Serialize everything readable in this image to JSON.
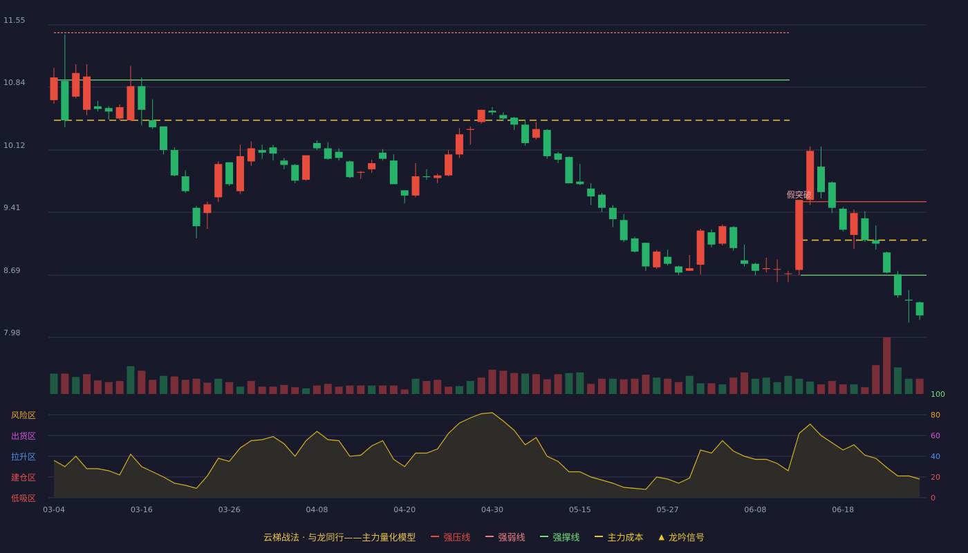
{
  "chart_data": {
    "type": "candlestick",
    "title": "",
    "x_ticks": [
      "03-04",
      "03-16",
      "03-26",
      "04-08",
      "04-20",
      "04-30",
      "05-15",
      "05-27",
      "06-08",
      "06-18"
    ],
    "y_ticks": [
      "11.55",
      "10.84",
      "10.12",
      "9.41",
      "8.69",
      "7.98"
    ],
    "ylim": [
      7.98,
      11.55
    ],
    "up_color": "#e74c3c",
    "down_color": "#27b36a",
    "candles": [
      [
        10.69,
        10.95,
        10.65,
        11.06
      ],
      [
        10.91,
        10.46,
        10.38,
        11.44
      ],
      [
        10.73,
        11.0,
        10.71,
        11.1
      ],
      [
        10.58,
        10.96,
        10.52,
        11.1
      ],
      [
        10.62,
        10.59,
        10.56,
        10.68
      ],
      [
        10.6,
        10.56,
        10.47,
        10.62
      ],
      [
        10.48,
        10.61,
        10.46,
        10.64
      ],
      [
        10.46,
        10.85,
        10.45,
        11.08
      ],
      [
        10.85,
        10.58,
        10.4,
        10.95
      ],
      [
        10.46,
        10.38,
        10.36,
        10.7
      ],
      [
        10.39,
        10.12,
        10.07,
        10.39
      ],
      [
        10.12,
        9.83,
        9.82,
        10.15
      ],
      [
        9.82,
        9.65,
        9.63,
        9.89
      ],
      [
        9.46,
        9.25,
        9.11,
        9.48
      ],
      [
        9.4,
        9.5,
        9.22,
        9.53
      ],
      [
        9.58,
        9.96,
        9.53,
        9.99
      ],
      [
        9.98,
        9.73,
        9.71,
        9.98
      ],
      [
        9.65,
        10.05,
        9.62,
        10.18
      ],
      [
        9.99,
        10.14,
        9.94,
        10.22
      ],
      [
        10.12,
        10.09,
        10.02,
        10.18
      ],
      [
        10.15,
        10.08,
        10.0,
        10.18
      ],
      [
        10.0,
        9.95,
        9.9,
        10.03
      ],
      [
        9.95,
        9.77,
        9.74,
        9.96
      ],
      [
        9.78,
        10.06,
        9.77,
        10.06
      ],
      [
        10.2,
        10.14,
        10.12,
        10.23
      ],
      [
        10.14,
        10.02,
        10.01,
        10.21
      ],
      [
        10.1,
        10.03,
        10.0,
        10.14
      ],
      [
        9.99,
        9.81,
        9.8,
        10.0
      ],
      [
        9.86,
        9.87,
        9.79,
        9.88
      ],
      [
        9.9,
        9.97,
        9.86,
        10.01
      ],
      [
        10.09,
        10.02,
        10.0,
        10.13
      ],
      [
        10.0,
        9.73,
        9.73,
        10.07
      ],
      [
        9.66,
        9.6,
        9.51,
        9.66
      ],
      [
        9.6,
        9.82,
        9.58,
        9.97
      ],
      [
        9.82,
        9.81,
        9.78,
        9.9
      ],
      [
        9.8,
        9.83,
        9.74,
        9.85
      ],
      [
        9.83,
        10.07,
        9.82,
        10.12
      ],
      [
        10.07,
        10.3,
        10.03,
        10.37
      ],
      [
        10.35,
        10.36,
        10.18,
        10.39
      ],
      [
        10.44,
        10.58,
        10.42,
        10.58
      ],
      [
        10.57,
        10.55,
        10.52,
        10.61
      ],
      [
        10.52,
        10.48,
        10.45,
        10.55
      ],
      [
        10.49,
        10.41,
        10.35,
        10.5
      ],
      [
        10.41,
        10.2,
        10.17,
        10.46
      ],
      [
        10.26,
        10.36,
        10.24,
        10.44
      ],
      [
        10.35,
        10.05,
        10.02,
        10.36
      ],
      [
        10.08,
        10.01,
        9.97,
        10.1
      ],
      [
        10.04,
        9.74,
        9.74,
        10.05
      ],
      [
        9.76,
        9.73,
        9.72,
        9.96
      ],
      [
        9.68,
        9.59,
        9.49,
        9.74
      ],
      [
        9.61,
        9.46,
        9.41,
        9.63
      ],
      [
        9.46,
        9.33,
        9.24,
        9.49
      ],
      [
        9.32,
        9.09,
        9.07,
        9.39
      ],
      [
        9.11,
        8.96,
        8.95,
        9.13
      ],
      [
        9.06,
        8.79,
        8.74,
        9.06
      ],
      [
        8.78,
        8.96,
        8.76,
        8.98
      ],
      [
        8.9,
        8.82,
        8.8,
        8.98
      ],
      [
        8.79,
        8.72,
        8.69,
        8.8
      ],
      [
        8.74,
        8.77,
        8.74,
        8.92
      ],
      [
        8.81,
        9.2,
        8.7,
        9.22
      ],
      [
        9.18,
        9.04,
        9.01,
        9.21
      ],
      [
        9.05,
        9.25,
        9.03,
        9.27
      ],
      [
        9.24,
        9.0,
        8.97,
        9.25
      ],
      [
        8.86,
        8.82,
        8.79,
        9.04
      ],
      [
        8.82,
        8.74,
        8.69,
        8.83
      ],
      [
        8.76,
        8.77,
        8.72,
        8.89
      ],
      [
        8.76,
        8.76,
        8.61,
        8.87
      ],
      [
        8.71,
        8.71,
        8.61,
        8.74
      ],
      [
        8.75,
        9.55,
        8.69,
        9.55
      ],
      [
        9.55,
        10.11,
        9.49,
        10.16
      ],
      [
        9.93,
        9.64,
        9.57,
        10.16
      ],
      [
        9.75,
        9.46,
        9.4,
        9.76
      ],
      [
        9.45,
        9.21,
        9.19,
        9.47
      ],
      [
        9.15,
        9.4,
        8.99,
        9.44
      ],
      [
        9.34,
        9.09,
        9.07,
        9.42
      ],
      [
        9.09,
        9.05,
        8.98,
        9.26
      ],
      [
        8.95,
        8.72,
        8.71,
        8.96
      ],
      [
        8.7,
        8.46,
        8.43,
        8.74
      ],
      [
        8.41,
        8.4,
        8.15,
        8.52
      ],
      [
        8.38,
        8.23,
        8.18,
        8.39
      ]
    ],
    "volume_colors": [
      "down",
      "up",
      "down",
      "up",
      "up",
      "up",
      "up",
      "down",
      "up",
      "up",
      "down",
      "up",
      "up",
      "up",
      "up",
      "down",
      "up",
      "down",
      "up",
      "up",
      "up",
      "up",
      "up",
      "down",
      "up",
      "up",
      "up",
      "up",
      "up",
      "down",
      "up",
      "up",
      "up",
      "down",
      "up",
      "up",
      "up",
      "down",
      "down",
      "up",
      "up",
      "up",
      "up",
      "down",
      "up",
      "up",
      "up",
      "down",
      "down",
      "up",
      "up",
      "down",
      "up",
      "up",
      "up",
      "down",
      "up",
      "up",
      "down",
      "down",
      "up",
      "down",
      "up",
      "up",
      "down",
      "down",
      "down",
      "down",
      "down",
      "down",
      "up",
      "up",
      "up",
      "down",
      "up",
      "up",
      "up",
      "down",
      "down",
      "up"
    ],
    "volumes": [
      36,
      36,
      30,
      35,
      24,
      21,
      23,
      49,
      41,
      25,
      32,
      31,
      25,
      27,
      20,
      27,
      21,
      13,
      23,
      13,
      13,
      16,
      12,
      10,
      15,
      18,
      13,
      15,
      15,
      15,
      15,
      15,
      8,
      27,
      23,
      25,
      13,
      14,
      23,
      29,
      43,
      41,
      37,
      36,
      35,
      26,
      35,
      37,
      38,
      18,
      27,
      27,
      26,
      27,
      34,
      29,
      27,
      21,
      32,
      19,
      19,
      17,
      29,
      38,
      27,
      29,
      21,
      32,
      27,
      22,
      17,
      23,
      17,
      17,
      12,
      51,
      100,
      47,
      27,
      27
    ]
  },
  "lines": {
    "strong_resist_top": {
      "value": 11.46,
      "kind": "dotted",
      "color": "#e07a6a"
    },
    "strong_support_top": {
      "value": 10.92,
      "kind": "solid",
      "color": "#6fe07a"
    },
    "main_cost_top": {
      "value": 10.46,
      "kind": "dashed",
      "color": "#e8c82c"
    },
    "strong_resist_right": {
      "value": 9.53,
      "kind": "solid",
      "color": "#e74c3c"
    },
    "main_cost_right": {
      "value": 9.09,
      "kind": "dashed",
      "color": "#e8c82c"
    },
    "strong_support_right": {
      "value": 8.69,
      "kind": "solid",
      "color": "#6fe07a"
    }
  },
  "signal_label": "假突破",
  "oscillator": {
    "values": [
      36,
      30,
      40,
      28,
      28,
      26,
      22,
      42,
      30,
      25,
      20,
      14,
      12,
      9,
      21,
      38,
      35,
      48,
      55,
      56,
      59,
      52,
      40,
      55,
      64,
      56,
      55,
      40,
      41,
      50,
      55,
      37,
      30,
      43,
      43,
      47,
      62,
      72,
      77,
      81,
      82,
      74,
      65,
      51,
      58,
      40,
      35,
      25,
      25,
      20,
      17,
      14,
      10,
      9,
      8,
      20,
      18,
      14,
      19,
      46,
      43,
      55,
      45,
      40,
      37,
      37,
      33,
      26,
      62,
      71,
      60,
      53,
      46,
      51,
      41,
      38,
      29,
      21,
      21,
      18
    ],
    "axis_ticks": [
      "100",
      "80",
      "60",
      "40",
      "20",
      "0"
    ],
    "zones": [
      {
        "label": "风险区",
        "color": "#e8a030"
      },
      {
        "label": "出货区",
        "color": "#d44fd4"
      },
      {
        "label": "拉升区",
        "color": "#4f8ee0"
      },
      {
        "label": "建仓区",
        "color": "#e84d4d"
      },
      {
        "label": "低吸区",
        "color": "#e84d4d"
      }
    ],
    "tick_colors": [
      "#6fe07a",
      "#e8a030",
      "#d44fd4",
      "#4f8ee0",
      "#e84d4d",
      "#e84d4d"
    ]
  },
  "legend": {
    "title": "云梯战法 · 与龙同行——主力量化模型",
    "items": [
      {
        "label": "强压线",
        "color": "#e74c3c",
        "kind": "solid"
      },
      {
        "label": "强弱线",
        "color": "#f08080",
        "kind": "dashed"
      },
      {
        "label": "强撑线",
        "color": "#6fe07a",
        "kind": "solid"
      },
      {
        "label": "主力成本",
        "color": "#e8c82c",
        "kind": "dashed"
      },
      {
        "label": "龙吟信号",
        "color": "#e8c82c",
        "kind": "triangle"
      }
    ]
  }
}
